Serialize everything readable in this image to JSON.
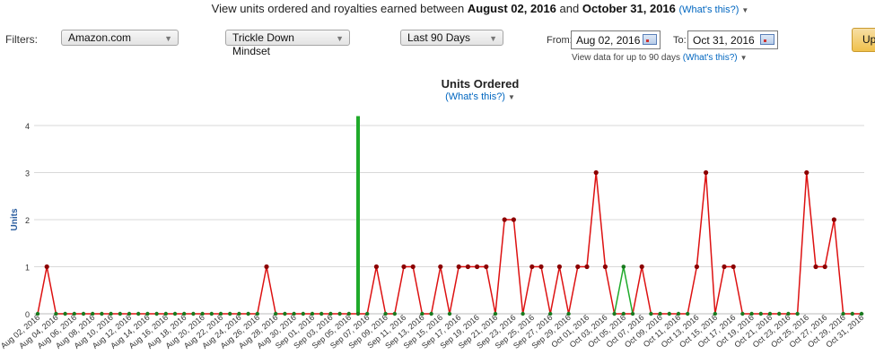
{
  "header": {
    "prefix": "View units ordered and royalties earned between",
    "start": "August 02, 2016",
    "and": "and",
    "end": "October 31, 2016",
    "help": "(What's this?)"
  },
  "filters": {
    "label": "Filters:",
    "marketplace": "Amazon.com",
    "title": "Trickle Down Mindset",
    "period": "Last 90 Days",
    "from_label": "From:",
    "from_value": "Aug 02, 2016",
    "to_label": "To:",
    "to_value": "Oct 31, 2016",
    "range_note": "View data for up to 90 days",
    "range_help": "(What's this?)",
    "update_label": "Up"
  },
  "colors": {
    "paid": "#dd1111",
    "free": "#1faa2a",
    "marker": "#8b0000",
    "grid": "#d9d9d9"
  },
  "chart_data": {
    "type": "line",
    "title": "Units Ordered",
    "subtitle": "(What's this?)",
    "ylabel": "Units",
    "ylim": [
      0,
      4.2
    ],
    "yticks": [
      0,
      1,
      2,
      3,
      4
    ],
    "start_date": "2016-08-02",
    "x_tick_labels": [
      "Aug 02, 2016",
      "Aug 04, 2016",
      "Aug 06, 2016",
      "Aug 08, 2016",
      "Aug 10, 2016",
      "Aug 12, 2016",
      "Aug 14, 2016",
      "Aug 16, 2016",
      "Aug 18, 2016",
      "Aug 20, 2016",
      "Aug 22, 2016",
      "Aug 24, 2016",
      "Aug 26, 2016",
      "Aug 28, 2016",
      "Aug 30, 2016",
      "Sep 01, 2016",
      "Sep 03, 2016",
      "Sep 05, 2016",
      "Sep 07, 2016",
      "Sep 09, 2016",
      "Sep 11, 2016",
      "Sep 13, 2016",
      "Sep 15, 2016",
      "Sep 17, 2016",
      "Sep 19, 2016",
      "Sep 21, 2016",
      "Sep 23, 2016",
      "Sep 25, 2016",
      "Sep 27, 2016",
      "Sep 29, 2016",
      "Oct 01, 2016",
      "Oct 03, 2016",
      "Oct 05, 2016",
      "Oct 07, 2016",
      "Oct 09, 2016",
      "Oct 11, 2016",
      "Oct 13, 2016",
      "Oct 15, 2016",
      "Oct 17, 2016",
      "Oct 19, 2016",
      "Oct 21, 2016",
      "Oct 23, 2016",
      "Oct 25, 2016",
      "Oct 27, 2016",
      "Oct 29, 2016",
      "Oct 31, 2016"
    ],
    "series": [
      {
        "color": "#dd1111",
        "values": [
          0,
          1,
          0,
          0,
          0,
          0,
          0,
          0,
          0,
          0,
          0,
          0,
          0,
          0,
          0,
          0,
          0,
          0,
          0,
          0,
          0,
          0,
          0,
          0,
          0,
          1,
          0,
          0,
          0,
          0,
          0,
          0,
          0,
          0,
          0,
          0,
          0,
          1,
          0,
          0,
          1,
          1,
          0,
          0,
          1,
          0,
          1,
          1,
          1,
          1,
          0,
          2,
          2,
          0,
          1,
          1,
          0,
          1,
          0,
          1,
          1,
          3,
          1,
          0,
          0,
          0,
          1,
          0,
          0,
          0,
          0,
          0,
          1,
          3,
          0,
          1,
          1,
          0,
          0,
          0,
          0,
          0,
          0,
          0,
          3,
          1,
          1,
          2,
          0,
          0,
          0
        ]
      },
      {
        "color": "#1faa2a",
        "values": [
          0,
          0,
          0,
          0,
          0,
          0,
          0,
          0,
          0,
          0,
          0,
          0,
          0,
          0,
          0,
          0,
          0,
          0,
          0,
          0,
          0,
          0,
          0,
          0,
          0,
          0,
          0,
          0,
          0,
          0,
          0,
          0,
          0,
          0,
          0,
          4.2,
          0,
          0,
          0,
          0,
          0,
          0,
          0,
          0,
          0,
          0,
          0,
          0,
          0,
          0,
          0,
          0,
          0,
          0,
          0,
          0,
          0,
          0,
          0,
          0,
          0,
          0,
          0,
          0,
          1,
          0,
          0,
          0,
          0,
          0,
          0,
          0,
          0,
          0,
          0,
          0,
          0,
          0,
          0,
          0,
          0,
          0,
          0,
          0,
          0,
          0,
          0,
          0,
          0,
          0,
          0
        ]
      }
    ]
  }
}
